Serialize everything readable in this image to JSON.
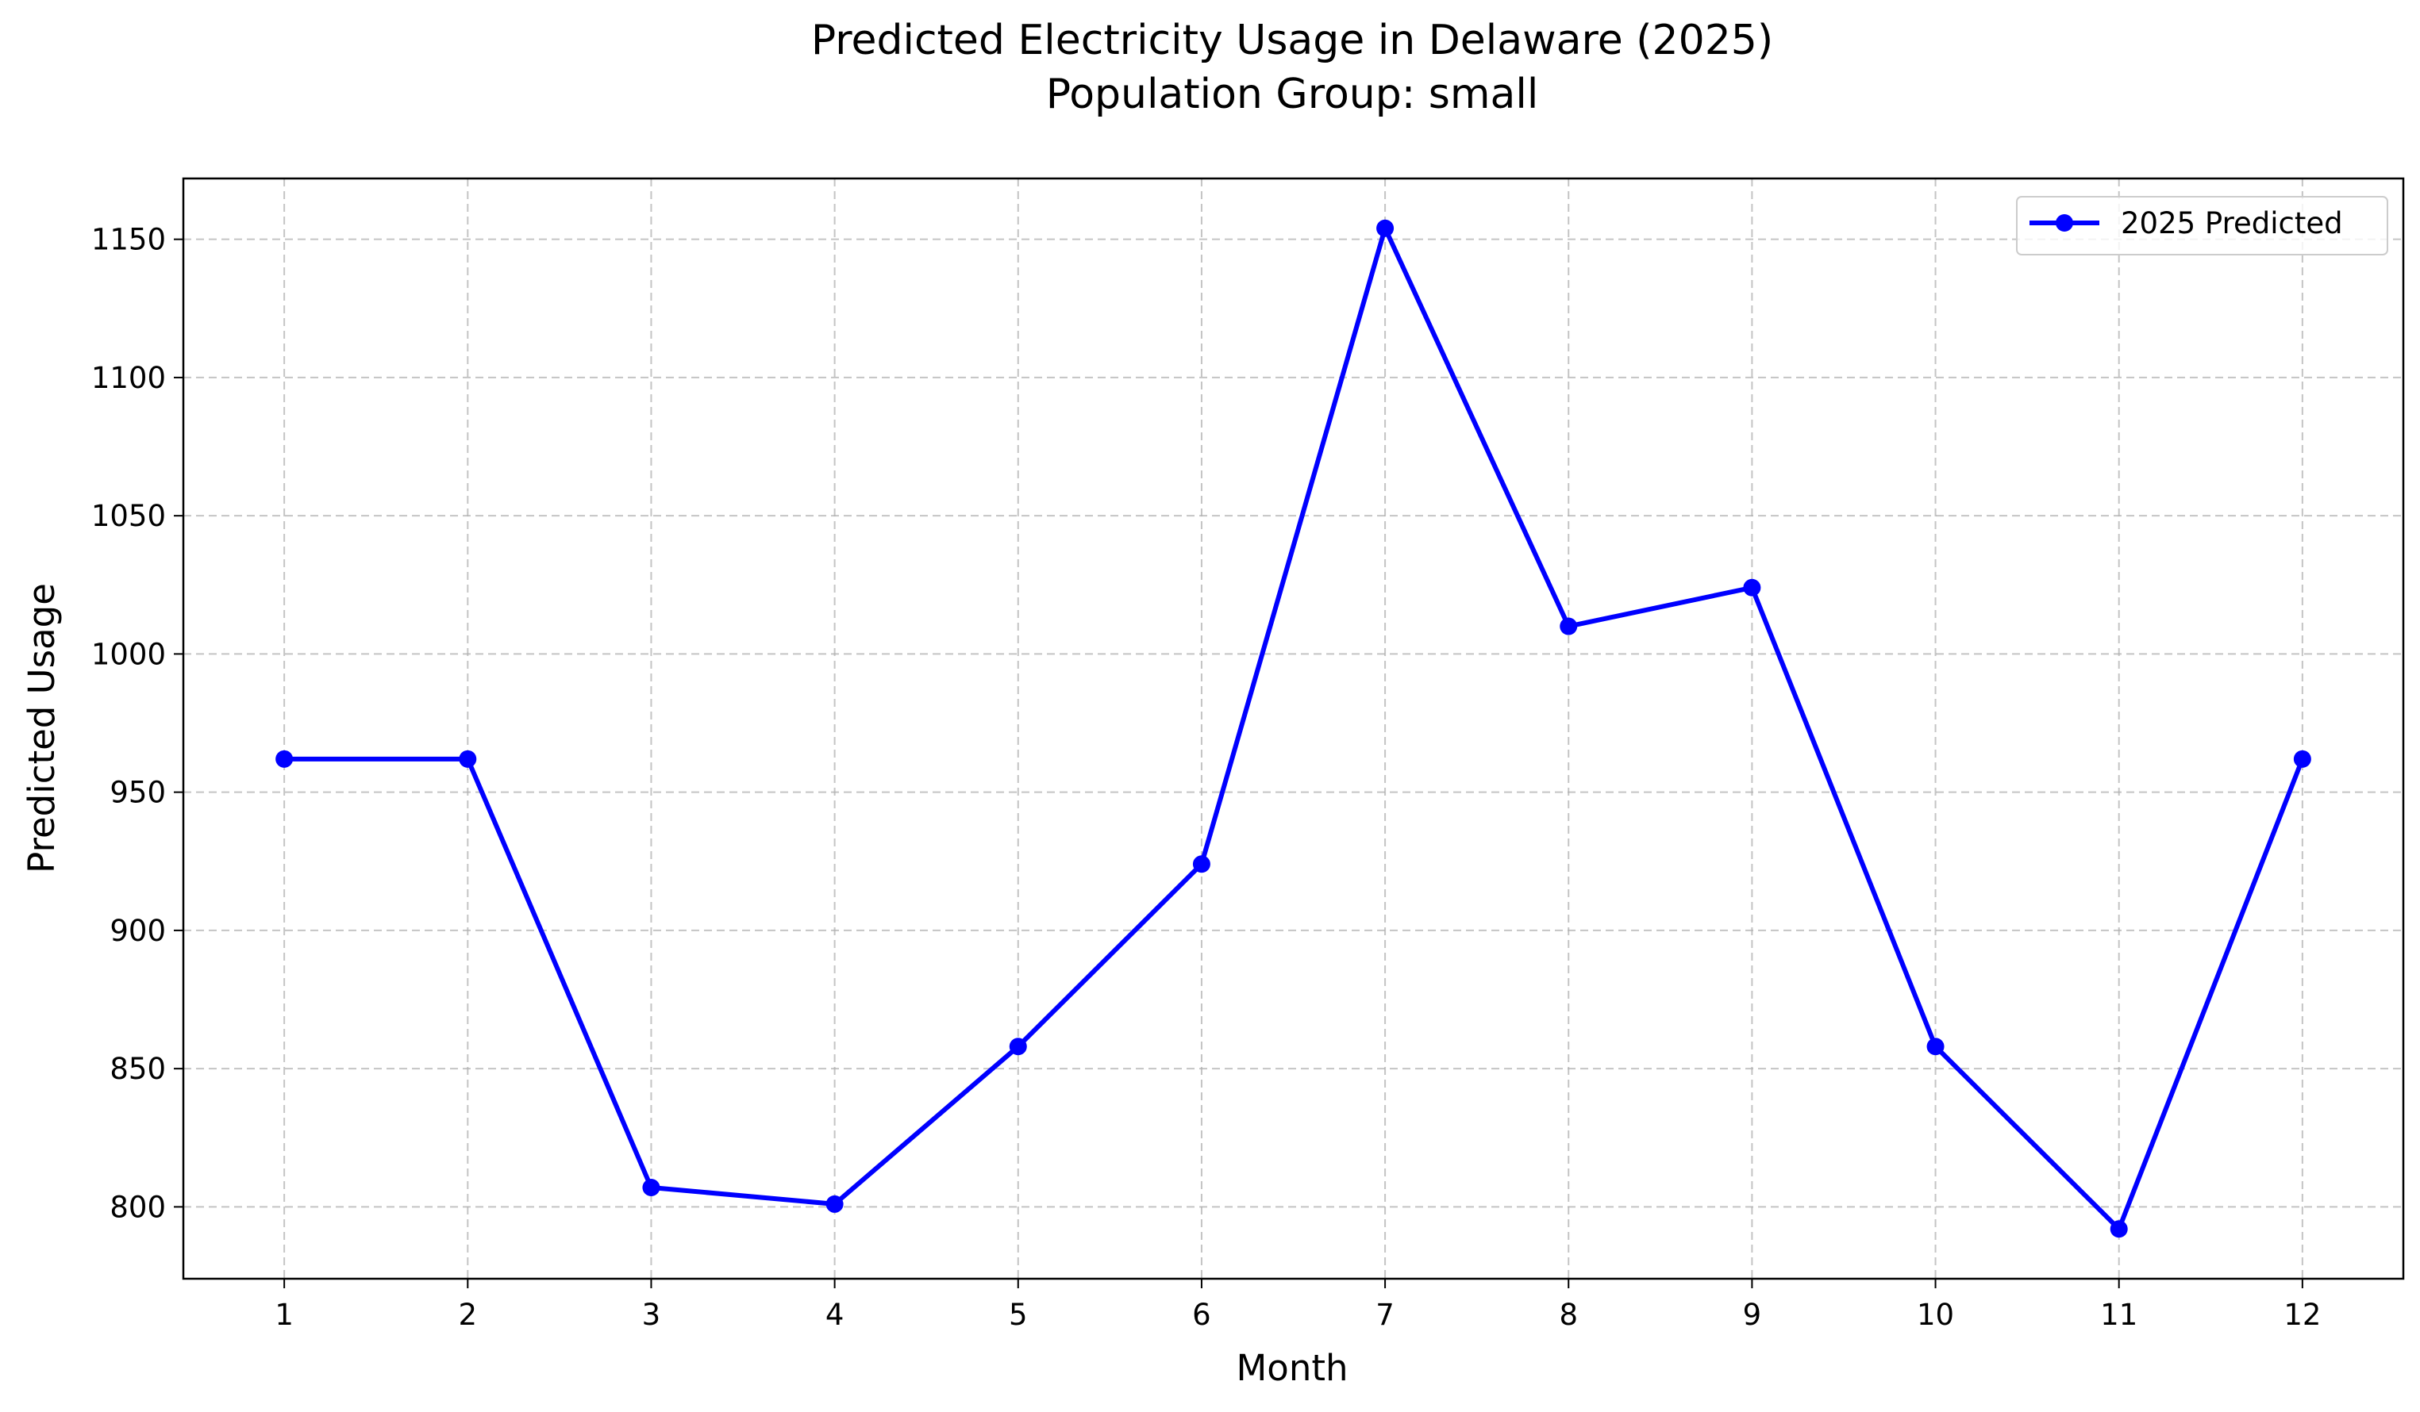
{
  "chart_data": {
    "type": "line",
    "title_line1": "Predicted Electricity Usage in Delaware (2025)",
    "title_line2": "Population Group: small",
    "xlabel": "Month",
    "ylabel": "Predicted Usage",
    "x": [
      1,
      2,
      3,
      4,
      5,
      6,
      7,
      8,
      9,
      10,
      11,
      12
    ],
    "x_ticks": [
      "1",
      "2",
      "3",
      "4",
      "5",
      "6",
      "7",
      "8",
      "9",
      "10",
      "11",
      "12"
    ],
    "xlim": [
      0.45,
      12.55
    ],
    "y_ticks": [
      800,
      850,
      900,
      950,
      1000,
      1050,
      1100,
      1150
    ],
    "ylim": [
      774,
      1172
    ],
    "grid": true,
    "legend_position": "top-right",
    "series": [
      {
        "name": "2025 Predicted",
        "color": "#0000ff",
        "marker": "circle",
        "values": [
          962,
          962,
          807,
          801,
          858,
          924,
          1154,
          1010,
          1024,
          858,
          792,
          962
        ]
      }
    ]
  }
}
